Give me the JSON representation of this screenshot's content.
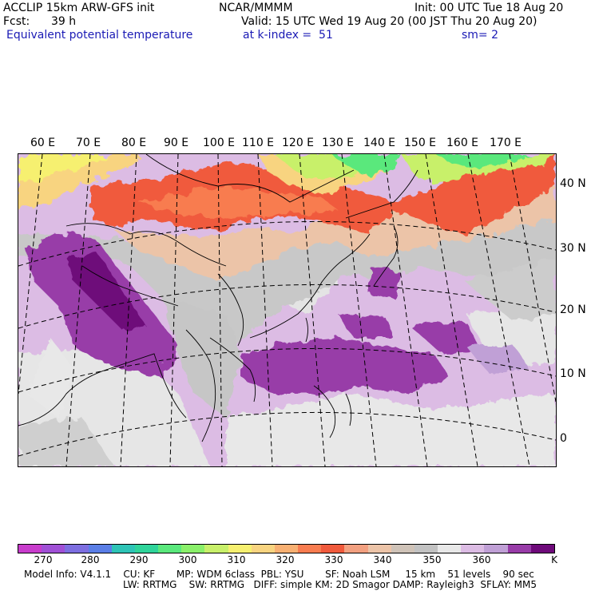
{
  "header": {
    "model_line": "ACCLIP 15km ARW-GFS init",
    "org": "NCAR/MMMM",
    "init": "Init: 00 UTC Tue 18 Aug 20",
    "fcst_label": "Fcst:",
    "fcst_value": "39 h",
    "valid": "Valid: 15 UTC Wed 19 Aug 20 (00 JST Thu 20 Aug 20)",
    "field": "Equivalent potential temperature",
    "level": "at k-index =  51",
    "smooth": "sm= 2"
  },
  "map": {
    "lon_labels": [
      "60 E",
      "70 E",
      "80 E",
      "90 E",
      "100 E",
      "110 E",
      "120 E",
      "130 E",
      "140 E",
      "150 E",
      "160 E",
      "170 E"
    ],
    "lat_labels": [
      "40 N",
      "30 N",
      "20 N",
      "10 N",
      "0"
    ]
  },
  "colorbar": {
    "colors": [
      "#c83ccc",
      "#a050d6",
      "#7d6ee0",
      "#5a7ee6",
      "#2ec4b6",
      "#2fd49a",
      "#5ae87c",
      "#8af06a",
      "#c8f06a",
      "#f6f070",
      "#f8d480",
      "#f8b072",
      "#f87c50",
      "#f05a3c",
      "#f2a080",
      "#ecc4a8",
      "#cfc3b8",
      "#c2c2c2",
      "#e8e8e8",
      "#dcbce4",
      "#c0a0d6",
      "#983ca8",
      "#6e0a7a"
    ],
    "tick_labels": [
      "270",
      "280",
      "290",
      "300",
      "310",
      "320",
      "330",
      "340",
      "350",
      "360"
    ],
    "unit": "K"
  },
  "footer": {
    "line1": "Model Info: V4.1.1    CU: KF       MP: WDM 6class  PBL: YSU       SF: Noah LSM     15 km    51 levels    90 sec",
    "line2": "LW: RRTMG    SW: RRTMG   DIFF: simple KM: 2D Smagor DAMP: Rayleigh3  SFLAY: MM5"
  }
}
